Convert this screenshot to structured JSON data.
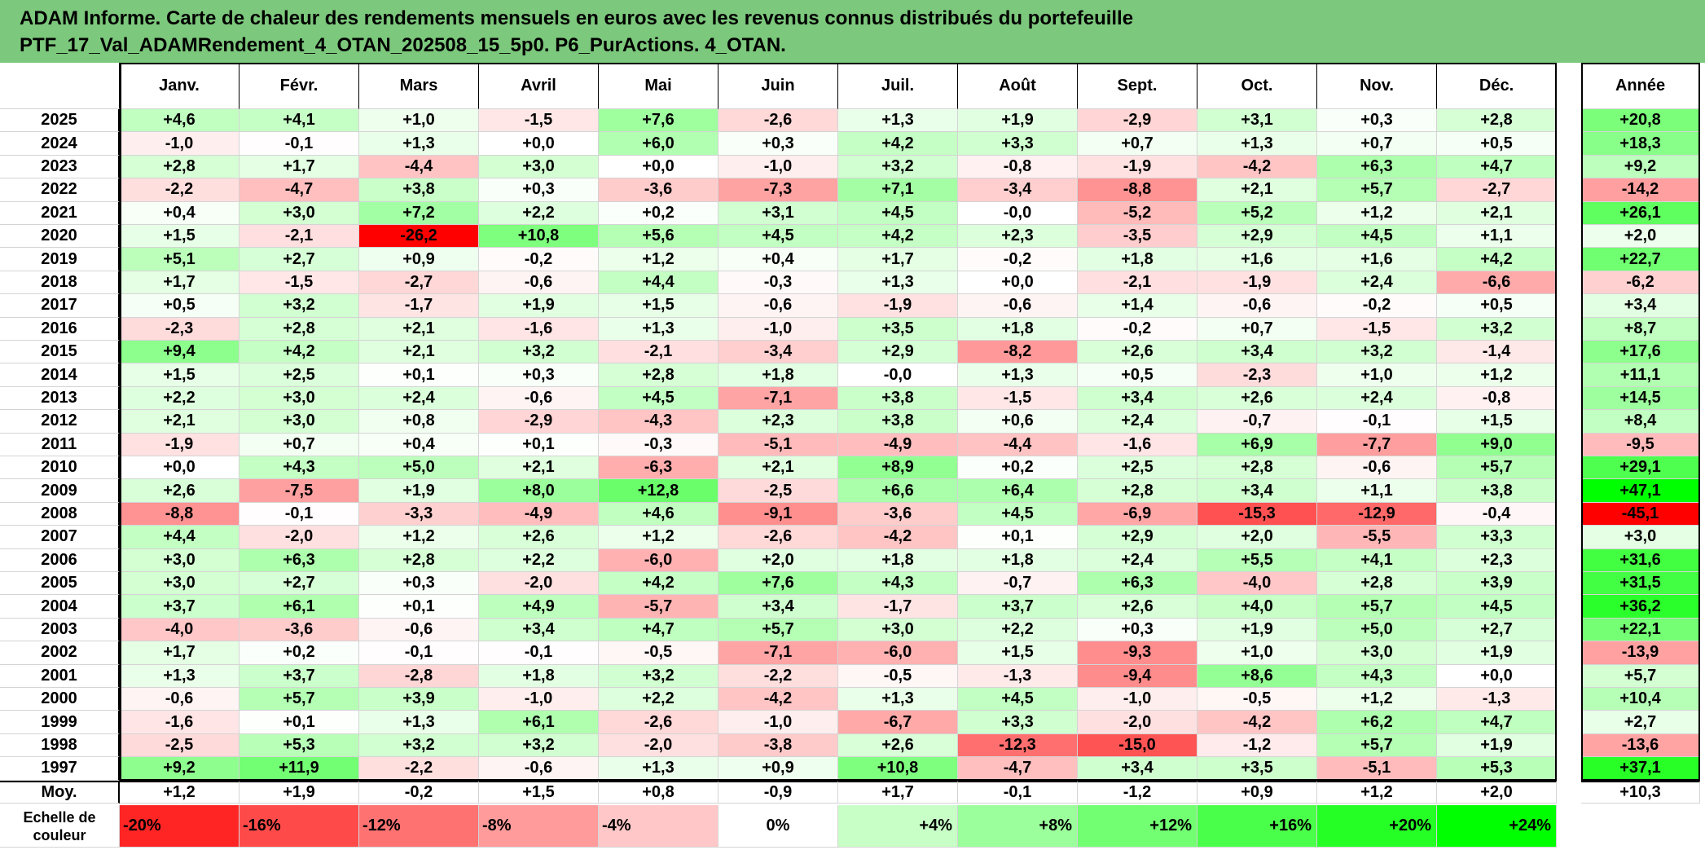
{
  "title": {
    "line1": "ADAM Informe. Carte de chaleur des rendements mensuels en euros avec les revenus connus distribués du portefeuille",
    "line2": "PTF_17_Val_ADAMRendement_4_OTAN_202508_15_5p0. P6_PurActions. 4_OTAN."
  },
  "chart_data": {
    "type": "heatmap",
    "columns": [
      "Janv.",
      "Févr.",
      "Mars",
      "Avril",
      "Mai",
      "Juin",
      "Juil.",
      "Août",
      "Sept.",
      "Oct.",
      "Nov.",
      "Déc."
    ],
    "annual_header": "Année",
    "rows": [
      {
        "year": "2025",
        "values": [
          "+4,6",
          "+4,1",
          "+1,0",
          "-1,5",
          "+7,6",
          "-2,6",
          "+1,3",
          "+1,9",
          "-2,9",
          "+3,1",
          "+0,3",
          "+2,8"
        ],
        "annual": "+20,8"
      },
      {
        "year": "2024",
        "values": [
          "-1,0",
          "-0,1",
          "+1,3",
          "+0,0",
          "+6,0",
          "+0,3",
          "+4,2",
          "+3,3",
          "+0,7",
          "+1,3",
          "+0,7",
          "+0,5"
        ],
        "annual": "+18,3"
      },
      {
        "year": "2023",
        "values": [
          "+2,8",
          "+1,7",
          "-4,4",
          "+3,0",
          "+0,0",
          "-1,0",
          "+3,2",
          "-0,8",
          "-1,9",
          "-4,2",
          "+6,3",
          "+4,7"
        ],
        "annual": "+9,2"
      },
      {
        "year": "2022",
        "values": [
          "-2,2",
          "-4,7",
          "+3,8",
          "+0,3",
          "-3,6",
          "-7,3",
          "+7,1",
          "-3,4",
          "-8,8",
          "+2,1",
          "+5,7",
          "-2,7"
        ],
        "annual": "-14,2"
      },
      {
        "year": "2021",
        "values": [
          "+0,4",
          "+3,0",
          "+7,2",
          "+2,2",
          "+0,2",
          "+3,1",
          "+4,5",
          "-0,0",
          "-5,2",
          "+5,2",
          "+1,2",
          "+2,1"
        ],
        "annual": "+26,1"
      },
      {
        "year": "2020",
        "values": [
          "+1,5",
          "-2,1",
          "-26,2",
          "+10,8",
          "+5,6",
          "+4,5",
          "+4,2",
          "+2,3",
          "-3,5",
          "+2,9",
          "+4,5",
          "+1,1"
        ],
        "annual": "+2,0"
      },
      {
        "year": "2019",
        "values": [
          "+5,1",
          "+2,7",
          "+0,9",
          "-0,2",
          "+1,2",
          "+0,4",
          "+1,7",
          "-0,2",
          "+1,8",
          "+1,6",
          "+1,6",
          "+4,2"
        ],
        "annual": "+22,7"
      },
      {
        "year": "2018",
        "values": [
          "+1,7",
          "-1,5",
          "-2,7",
          "-0,6",
          "+4,4",
          "-0,3",
          "+1,3",
          "+0,0",
          "-2,1",
          "-1,9",
          "+2,4",
          "-6,6"
        ],
        "annual": "-6,2"
      },
      {
        "year": "2017",
        "values": [
          "+0,5",
          "+3,2",
          "-1,7",
          "+1,9",
          "+1,5",
          "-0,6",
          "-1,9",
          "-0,6",
          "+1,4",
          "-0,6",
          "-0,2",
          "+0,5"
        ],
        "annual": "+3,4"
      },
      {
        "year": "2016",
        "values": [
          "-2,3",
          "+2,8",
          "+2,1",
          "-1,6",
          "+1,3",
          "-1,0",
          "+3,5",
          "+1,8",
          "-0,2",
          "+0,7",
          "-1,5",
          "+3,2"
        ],
        "annual": "+8,7"
      },
      {
        "year": "2015",
        "values": [
          "+9,4",
          "+4,2",
          "+2,1",
          "+3,2",
          "-2,1",
          "-3,4",
          "+2,9",
          "-8,2",
          "+2,6",
          "+3,4",
          "+3,2",
          "-1,4"
        ],
        "annual": "+17,6"
      },
      {
        "year": "2014",
        "values": [
          "+1,5",
          "+2,5",
          "+0,1",
          "+0,3",
          "+2,8",
          "+1,8",
          "-0,0",
          "+1,3",
          "+0,5",
          "-2,3",
          "+1,0",
          "+1,2"
        ],
        "annual": "+11,1"
      },
      {
        "year": "2013",
        "values": [
          "+2,2",
          "+3,0",
          "+2,4",
          "-0,6",
          "+4,5",
          "-7,1",
          "+3,8",
          "-1,5",
          "+3,4",
          "+2,6",
          "+2,4",
          "-0,8"
        ],
        "annual": "+14,5"
      },
      {
        "year": "2012",
        "values": [
          "+2,1",
          "+3,0",
          "+0,8",
          "-2,9",
          "-4,3",
          "+2,3",
          "+3,8",
          "+0,6",
          "+2,4",
          "-0,7",
          "-0,1",
          "+1,5"
        ],
        "annual": "+8,4"
      },
      {
        "year": "2011",
        "values": [
          "-1,9",
          "+0,7",
          "+0,4",
          "+0,1",
          "-0,3",
          "-5,1",
          "-4,9",
          "-4,4",
          "-1,6",
          "+6,9",
          "-7,7",
          "+9,0"
        ],
        "annual": "-9,5"
      },
      {
        "year": "2010",
        "values": [
          "+0,0",
          "+4,3",
          "+5,0",
          "+2,1",
          "-6,3",
          "+2,1",
          "+8,9",
          "+0,2",
          "+2,5",
          "+2,8",
          "-0,6",
          "+5,7"
        ],
        "annual": "+29,1"
      },
      {
        "year": "2009",
        "values": [
          "+2,6",
          "-7,5",
          "+1,9",
          "+8,0",
          "+12,8",
          "-2,5",
          "+6,6",
          "+6,4",
          "+2,8",
          "+3,4",
          "+1,1",
          "+3,8"
        ],
        "annual": "+47,1"
      },
      {
        "year": "2008",
        "values": [
          "-8,8",
          "-0,1",
          "-3,3",
          "-4,9",
          "+4,6",
          "-9,1",
          "-3,6",
          "+4,5",
          "-6,9",
          "-15,3",
          "-12,9",
          "-0,4"
        ],
        "annual": "-45,1"
      },
      {
        "year": "2007",
        "values": [
          "+4,4",
          "-2,0",
          "+1,2",
          "+2,6",
          "+1,2",
          "-2,6",
          "-4,2",
          "+0,1",
          "+2,9",
          "+2,0",
          "-5,5",
          "+3,3"
        ],
        "annual": "+3,0"
      },
      {
        "year": "2006",
        "values": [
          "+3,0",
          "+6,3",
          "+2,8",
          "+2,2",
          "-6,0",
          "+2,0",
          "+1,8",
          "+1,8",
          "+2,4",
          "+5,5",
          "+4,1",
          "+2,3"
        ],
        "annual": "+31,6"
      },
      {
        "year": "2005",
        "values": [
          "+3,0",
          "+2,7",
          "+0,3",
          "-2,0",
          "+4,2",
          "+7,6",
          "+4,3",
          "-0,7",
          "+6,3",
          "-4,0",
          "+2,8",
          "+3,9"
        ],
        "annual": "+31,5"
      },
      {
        "year": "2004",
        "values": [
          "+3,7",
          "+6,1",
          "+0,1",
          "+4,9",
          "-5,7",
          "+3,4",
          "-1,7",
          "+3,7",
          "+2,6",
          "+4,0",
          "+5,7",
          "+4,5"
        ],
        "annual": "+36,2"
      },
      {
        "year": "2003",
        "values": [
          "-4,0",
          "-3,6",
          "-0,6",
          "+3,4",
          "+4,7",
          "+5,7",
          "+3,0",
          "+2,2",
          "+0,3",
          "+1,9",
          "+5,0",
          "+2,7"
        ],
        "annual": "+22,1"
      },
      {
        "year": "2002",
        "values": [
          "+1,7",
          "+0,2",
          "-0,1",
          "-0,1",
          "-0,5",
          "-7,1",
          "-6,0",
          "+1,5",
          "-9,3",
          "+1,0",
          "+3,0",
          "+1,9"
        ],
        "annual": "-13,9"
      },
      {
        "year": "2001",
        "values": [
          "+1,3",
          "+3,7",
          "-2,8",
          "+1,8",
          "+3,2",
          "-2,2",
          "-0,5",
          "-1,3",
          "-9,4",
          "+8,6",
          "+4,3",
          "+0,0"
        ],
        "annual": "+5,7"
      },
      {
        "year": "2000",
        "values": [
          "-0,6",
          "+5,7",
          "+3,9",
          "-1,0",
          "+2,2",
          "-4,2",
          "+1,3",
          "+4,5",
          "-1,0",
          "-0,5",
          "+1,2",
          "-1,3"
        ],
        "annual": "+10,4"
      },
      {
        "year": "1999",
        "values": [
          "-1,6",
          "+0,1",
          "+1,3",
          "+6,1",
          "-2,6",
          "-1,0",
          "-6,7",
          "+3,3",
          "-2,0",
          "-4,2",
          "+6,2",
          "+4,7"
        ],
        "annual": "+2,7"
      },
      {
        "year": "1998",
        "values": [
          "-2,5",
          "+5,3",
          "+3,2",
          "+3,2",
          "-2,0",
          "-3,8",
          "+2,6",
          "-12,3",
          "-15,0",
          "-1,2",
          "+5,7",
          "+1,9"
        ],
        "annual": "-13,6"
      },
      {
        "year": "1997",
        "values": [
          "+9,2",
          "+11,9",
          "-2,2",
          "-0,6",
          "+1,3",
          "+0,9",
          "+10,8",
          "-4,7",
          "+3,4",
          "+3,5",
          "-5,1",
          "+5,3"
        ],
        "annual": "+37,1"
      }
    ],
    "average": {
      "label": "Moy.",
      "values": [
        "+1,2",
        "+1,9",
        "-0,2",
        "+1,5",
        "+0,8",
        "-0,9",
        "+1,7",
        "-0,1",
        "-1,2",
        "+0,9",
        "+1,2",
        "+2,0"
      ],
      "annual": "+10,3"
    },
    "legend": {
      "label": "Echelle de couleur",
      "steps": [
        {
          "text": "-20%",
          "value": -20
        },
        {
          "text": "-16%",
          "value": -16
        },
        {
          "text": "-12%",
          "value": -12
        },
        {
          "text": "-8%",
          "value": -8
        },
        {
          "text": "-4%",
          "value": -4
        },
        {
          "text": "0%",
          "value": 0
        },
        {
          "text": "+4%",
          "value": 4
        },
        {
          "text": "+8%",
          "value": 8
        },
        {
          "text": "+12%",
          "value": 12
        },
        {
          "text": "+16%",
          "value": 16
        },
        {
          "text": "+20%",
          "value": 20
        },
        {
          "text": "+24%",
          "value": 24
        }
      ]
    },
    "color_scale": {
      "negative": "#ff0000",
      "zero": "#ffffff",
      "positive": "#00ff00",
      "monthly_saturation": 24,
      "annual_saturation": 45
    }
  }
}
